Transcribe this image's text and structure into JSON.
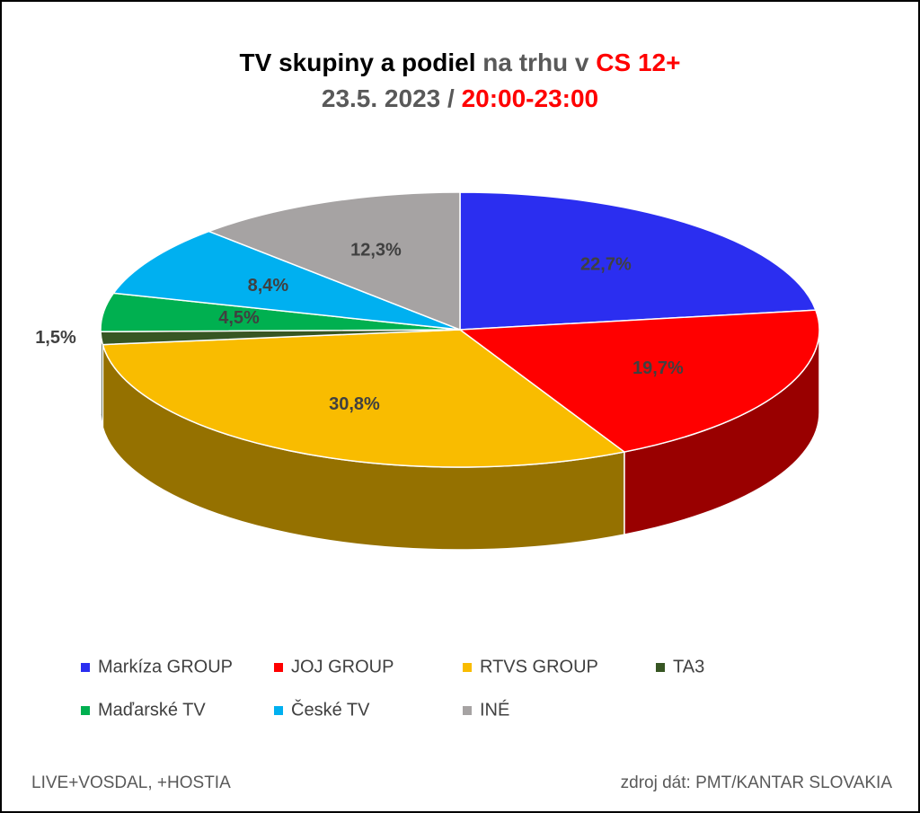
{
  "chart_data": {
    "type": "pie3d",
    "title_lines": [
      [
        {
          "text": "TV skupiny a podiel",
          "color": "#000000"
        },
        {
          "text": "na trhu v",
          "color": "#595959"
        },
        {
          "text": "CS 12+",
          "color": "#ff0000"
        }
      ],
      [
        {
          "text": "23.5. 2023 /",
          "color": "#595959"
        },
        {
          "text": "20:00-23:00",
          "color": "#ff0000"
        }
      ]
    ],
    "categories": [
      "Markíza GROUP",
      "JOJ GROUP",
      "RTVS GROUP",
      "TA3",
      "Maďarské  TV",
      "České  TV",
      "INÉ"
    ],
    "values": [
      22.7,
      19.7,
      30.8,
      1.5,
      4.5,
      8.4,
      12.3
    ],
    "value_labels": [
      "22,7%",
      "19,7%",
      "30,8%",
      "1,5%",
      "4,5%",
      "8,4%",
      "12,3%"
    ],
    "colors": [
      "#2b2ef0",
      "#ff0000",
      "#f9bc00",
      "#375623",
      "#00b050",
      "#00b0f0",
      "#a6a3a3"
    ],
    "footer_left": "LIVE+VOSDAL, +HOSTIA",
    "footer_right": "zdroj dát: PMT/KANTAR SLOVAKIA"
  }
}
